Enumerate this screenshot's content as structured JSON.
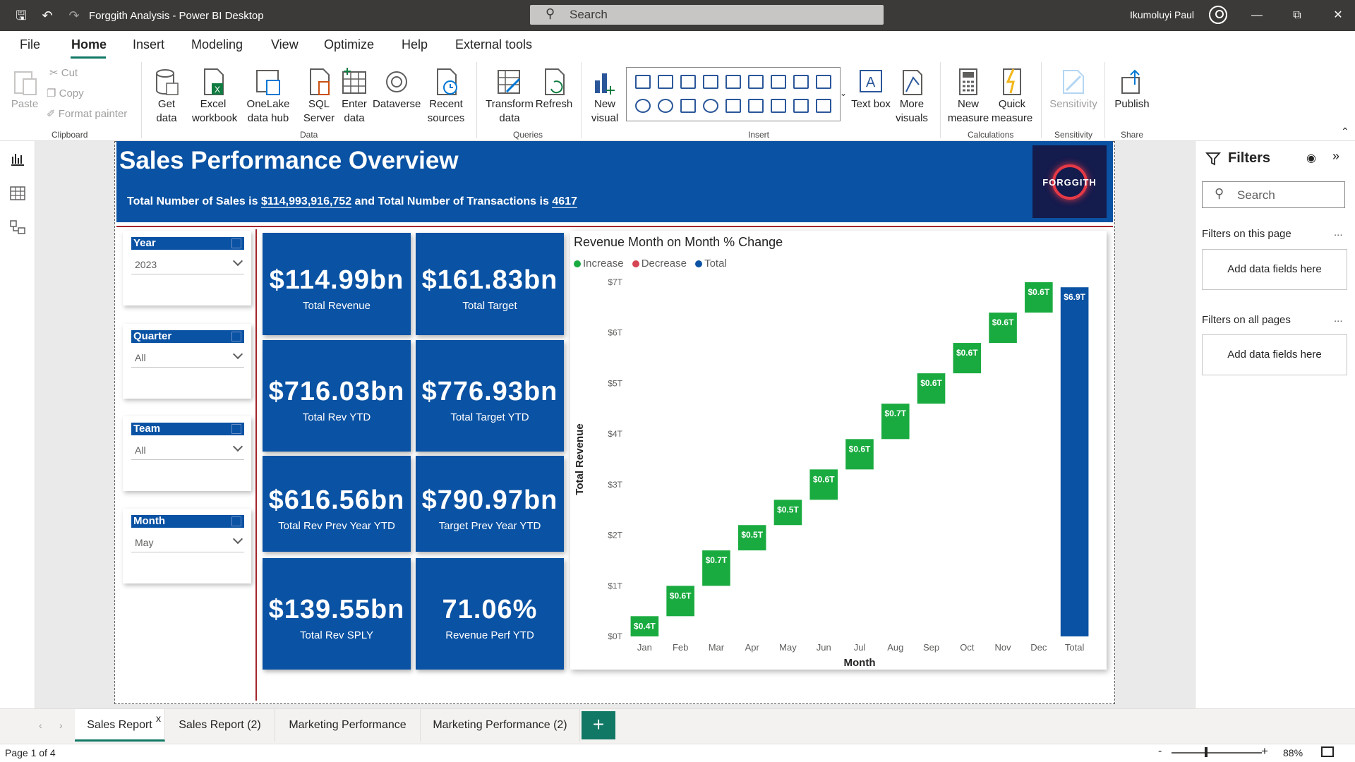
{
  "titlebar": {
    "app_title": "Forggith Analysis - Power BI Desktop",
    "search_placeholder": "Search",
    "user_name": "Ikumoluyi Paul"
  },
  "menu": [
    "File",
    "Home",
    "Insert",
    "Modeling",
    "View",
    "Optimize",
    "Help",
    "External tools"
  ],
  "ribbon": {
    "clipboard": {
      "paste": "Paste",
      "cut": "Cut",
      "copy": "Copy",
      "format_painter": "Format painter",
      "label": "Clipboard"
    },
    "data": {
      "get_data": "Get data",
      "excel": "Excel workbook",
      "onelake": "OneLake data hub",
      "sql": "SQL Server",
      "enter": "Enter data",
      "dataverse": "Dataverse",
      "recent": "Recent sources",
      "label": "Data"
    },
    "queries": {
      "transform": "Transform data",
      "refresh": "Refresh",
      "label": "Queries"
    },
    "insert": {
      "new_visual": "New visual",
      "text_box": "Text box",
      "more_visuals": "More visuals",
      "label": "Insert"
    },
    "calculations": {
      "new_measure": "New measure",
      "quick_measure": "Quick measure",
      "label": "Calculations"
    },
    "sensitivity": {
      "sensitivity": "Sensitivity",
      "label": "Sensitivity"
    },
    "share": {
      "publish": "Publish",
      "label": "Share"
    }
  },
  "report": {
    "title": "Sales Performance Overview",
    "subtitle_prefix": "Total Number of Sales is ",
    "total_sales": "$114,993,916,752",
    "subtitle_mid": " and Total Number of Transactions is ",
    "transactions": "4617",
    "logo_text": "FORGGITH",
    "slicers": [
      {
        "label": "Year",
        "value": "2023"
      },
      {
        "label": "Quarter",
        "value": "All"
      },
      {
        "label": "Team",
        "value": "All"
      },
      {
        "label": "Month",
        "value": "May"
      }
    ],
    "kpis": [
      {
        "value": "$114.99bn",
        "label": "Total Revenue"
      },
      {
        "value": "$161.83bn",
        "label": "Total Target"
      },
      {
        "value": "$716.03bn",
        "label": "Total Rev YTD"
      },
      {
        "value": "$776.93bn",
        "label": "Total Target YTD"
      },
      {
        "value": "$616.56bn",
        "label": "Total Rev Prev Year YTD"
      },
      {
        "value": "$790.97bn",
        "label": "Target Prev Year YTD"
      },
      {
        "value": "$139.55bn",
        "label": "Total Rev SPLY"
      },
      {
        "value": "71.06%",
        "label": "Revenue Perf YTD"
      }
    ]
  },
  "chart_data": {
    "type": "bar",
    "subtype": "waterfall",
    "title": "Revenue Month on Month % Change",
    "xlabel": "Month",
    "ylabel": "Total Revenue",
    "legend": [
      {
        "name": "Increase",
        "color": "#1aab40"
      },
      {
        "name": "Decrease",
        "color": "#d64554"
      },
      {
        "name": "Total",
        "color": "#0a52a3"
      }
    ],
    "legend_position": "top-left",
    "categories": [
      "Jan",
      "Feb",
      "Mar",
      "Apr",
      "May",
      "Jun",
      "Jul",
      "Aug",
      "Sep",
      "Oct",
      "Nov",
      "Dec",
      "Total"
    ],
    "values": [
      0.4,
      0.6,
      0.7,
      0.5,
      0.5,
      0.6,
      0.6,
      0.7,
      0.6,
      0.6,
      0.6,
      0.6,
      6.9
    ],
    "value_labels": [
      "$0.4T",
      "$0.6T",
      "$0.7T",
      "$0.5T",
      "$0.5T",
      "$0.6T",
      "$0.6T",
      "$0.7T",
      "$0.6T",
      "$0.6T",
      "$0.6T",
      "$0.6T",
      "$6.9T"
    ],
    "y_ticks": [
      "$0T",
      "$1T",
      "$2T",
      "$3T",
      "$4T",
      "$5T",
      "$6T",
      "$7T"
    ],
    "ylim": [
      0,
      7
    ],
    "grid": false
  },
  "filters": {
    "title": "Filters",
    "search": "Search",
    "this_page": "Filters on this page",
    "all_pages": "Filters on all pages",
    "add_fields": "Add data fields here",
    "more": "..."
  },
  "tabs": [
    {
      "label": "Sales Report"
    },
    {
      "label": "Sales Report (2)"
    },
    {
      "label": "Marketing Performance"
    },
    {
      "label": "Marketing Performance (2)"
    }
  ],
  "tab_close": "x",
  "add_tab": "+",
  "status": {
    "page": "Page 1 of 4",
    "zoom": "88%",
    "minus": "-",
    "plus": "+"
  }
}
